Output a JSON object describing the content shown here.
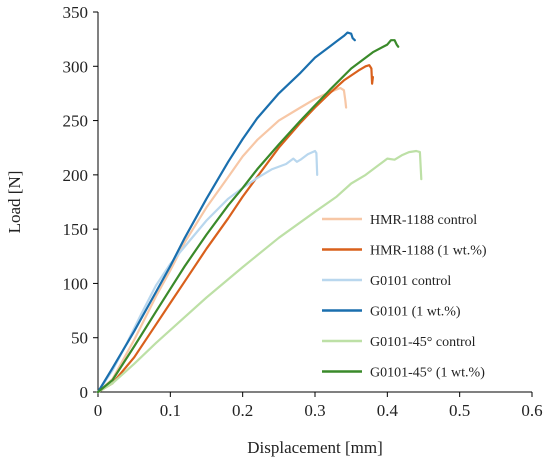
{
  "chart_data": {
    "type": "line",
    "title": "",
    "xlabel": "Displacement [mm]",
    "ylabel": "Load [N]",
    "xlim": [
      0,
      0.6
    ],
    "ylim": [
      0,
      350
    ],
    "x_ticks": [
      "0",
      "0.1",
      "0.2",
      "0.3",
      "0.4",
      "0.5",
      "0.6"
    ],
    "y_ticks": [
      "0",
      "50",
      "100",
      "150",
      "200",
      "250",
      "300",
      "350"
    ],
    "grid": false,
    "legend_position": "bottom-right",
    "series": [
      {
        "name": "HMR-1188 control",
        "color": "#f7c7a6",
        "points": [
          [
            0,
            0
          ],
          [
            0.02,
            12
          ],
          [
            0.05,
            48
          ],
          [
            0.08,
            88
          ],
          [
            0.1,
            112
          ],
          [
            0.12,
            138
          ],
          [
            0.15,
            170
          ],
          [
            0.18,
            198
          ],
          [
            0.2,
            217
          ],
          [
            0.22,
            232
          ],
          [
            0.25,
            250
          ],
          [
            0.28,
            262
          ],
          [
            0.3,
            270
          ],
          [
            0.32,
            276
          ],
          [
            0.335,
            280
          ],
          [
            0.34,
            278
          ],
          [
            0.342,
            268
          ],
          [
            0.343,
            262
          ]
        ]
      },
      {
        "name": "HMR-1188 (1 wt.%)",
        "color": "#d9601c",
        "points": [
          [
            0,
            0
          ],
          [
            0.02,
            8
          ],
          [
            0.05,
            32
          ],
          [
            0.08,
            62
          ],
          [
            0.1,
            82
          ],
          [
            0.12,
            102
          ],
          [
            0.15,
            132
          ],
          [
            0.18,
            160
          ],
          [
            0.2,
            180
          ],
          [
            0.22,
            198
          ],
          [
            0.25,
            225
          ],
          [
            0.28,
            248
          ],
          [
            0.3,
            262
          ],
          [
            0.32,
            275
          ],
          [
            0.34,
            287
          ],
          [
            0.36,
            296
          ],
          [
            0.37,
            300
          ],
          [
            0.375,
            301
          ],
          [
            0.378,
            298
          ],
          [
            0.379,
            284
          ],
          [
            0.38,
            290
          ]
        ]
      },
      {
        "name": "G0101 control",
        "color": "#b9d7ee",
        "points": [
          [
            0,
            0
          ],
          [
            0.02,
            20
          ],
          [
            0.04,
            45
          ],
          [
            0.06,
            72
          ],
          [
            0.08,
            98
          ],
          [
            0.1,
            118
          ],
          [
            0.12,
            134
          ],
          [
            0.15,
            158
          ],
          [
            0.18,
            178
          ],
          [
            0.2,
            188
          ],
          [
            0.22,
            197
          ],
          [
            0.24,
            205
          ],
          [
            0.26,
            210
          ],
          [
            0.27,
            215
          ],
          [
            0.275,
            212
          ],
          [
            0.28,
            214
          ],
          [
            0.29,
            219
          ],
          [
            0.3,
            222
          ],
          [
            0.302,
            220
          ],
          [
            0.303,
            200
          ]
        ]
      },
      {
        "name": "G0101 (1 wt.%)",
        "color": "#1a6fae",
        "points": [
          [
            0,
            0
          ],
          [
            0.02,
            22
          ],
          [
            0.05,
            56
          ],
          [
            0.08,
            92
          ],
          [
            0.1,
            116
          ],
          [
            0.12,
            142
          ],
          [
            0.15,
            178
          ],
          [
            0.18,
            212
          ],
          [
            0.2,
            233
          ],
          [
            0.22,
            252
          ],
          [
            0.25,
            275
          ],
          [
            0.28,
            294
          ],
          [
            0.3,
            308
          ],
          [
            0.32,
            318
          ],
          [
            0.33,
            323
          ],
          [
            0.34,
            328
          ],
          [
            0.345,
            331
          ],
          [
            0.35,
            330
          ],
          [
            0.352,
            326
          ],
          [
            0.355,
            324
          ]
        ]
      },
      {
        "name": "G0101-45° control",
        "color": "#bde0a6",
        "points": [
          [
            0,
            0
          ],
          [
            0.02,
            8
          ],
          [
            0.05,
            26
          ],
          [
            0.08,
            45
          ],
          [
            0.1,
            57
          ],
          [
            0.15,
            87
          ],
          [
            0.2,
            115
          ],
          [
            0.25,
            142
          ],
          [
            0.3,
            166
          ],
          [
            0.33,
            180
          ],
          [
            0.35,
            192
          ],
          [
            0.37,
            200
          ],
          [
            0.39,
            210
          ],
          [
            0.4,
            215
          ],
          [
            0.41,
            214
          ],
          [
            0.42,
            218
          ],
          [
            0.43,
            221
          ],
          [
            0.44,
            222
          ],
          [
            0.445,
            221
          ],
          [
            0.447,
            196
          ]
        ]
      },
      {
        "name": "G0101-45° (1 wt.%)",
        "color": "#3a8a2a",
        "points": [
          [
            0,
            0
          ],
          [
            0.02,
            11
          ],
          [
            0.05,
            42
          ],
          [
            0.08,
            74
          ],
          [
            0.1,
            95
          ],
          [
            0.12,
            116
          ],
          [
            0.15,
            145
          ],
          [
            0.18,
            172
          ],
          [
            0.2,
            188
          ],
          [
            0.22,
            205
          ],
          [
            0.25,
            228
          ],
          [
            0.28,
            250
          ],
          [
            0.3,
            264
          ],
          [
            0.32,
            278
          ],
          [
            0.35,
            298
          ],
          [
            0.38,
            313
          ],
          [
            0.4,
            320
          ],
          [
            0.405,
            324
          ],
          [
            0.41,
            324
          ],
          [
            0.413,
            320
          ],
          [
            0.415,
            318
          ]
        ]
      }
    ]
  }
}
